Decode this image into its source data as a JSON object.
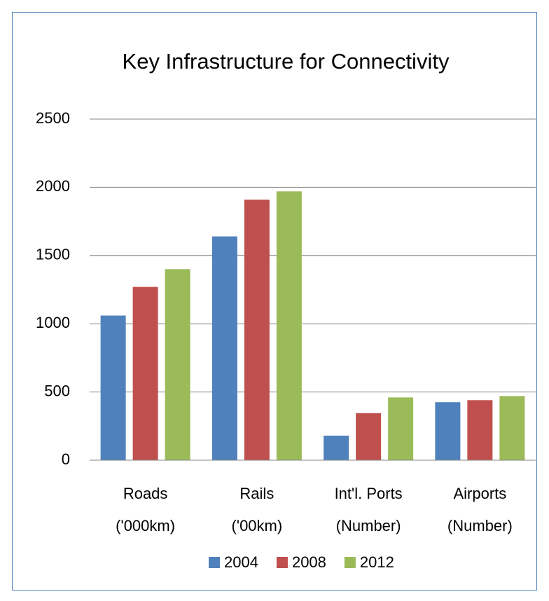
{
  "chart_data": {
    "type": "bar",
    "title": "Key Infrastructure for Connectivity",
    "categories": [
      "Roads ('000km)",
      "Rails ('00km)",
      "Int'l. Ports (Number)",
      "Airports (Number)"
    ],
    "series": [
      {
        "name": "2004",
        "color": "#4f81bd",
        "values": [
          1060,
          1640,
          180,
          425
        ]
      },
      {
        "name": "2008",
        "color": "#c0504d",
        "values": [
          1270,
          1910,
          345,
          440
        ]
      },
      {
        "name": "2012",
        "color": "#9bbb59",
        "values": [
          1400,
          1970,
          460,
          470
        ]
      }
    ],
    "ylim": [
      0,
      2500
    ],
    "yticks": [
      0,
      500,
      1000,
      1500,
      2000,
      2500
    ],
    "grid": true,
    "legend": "bottom"
  }
}
